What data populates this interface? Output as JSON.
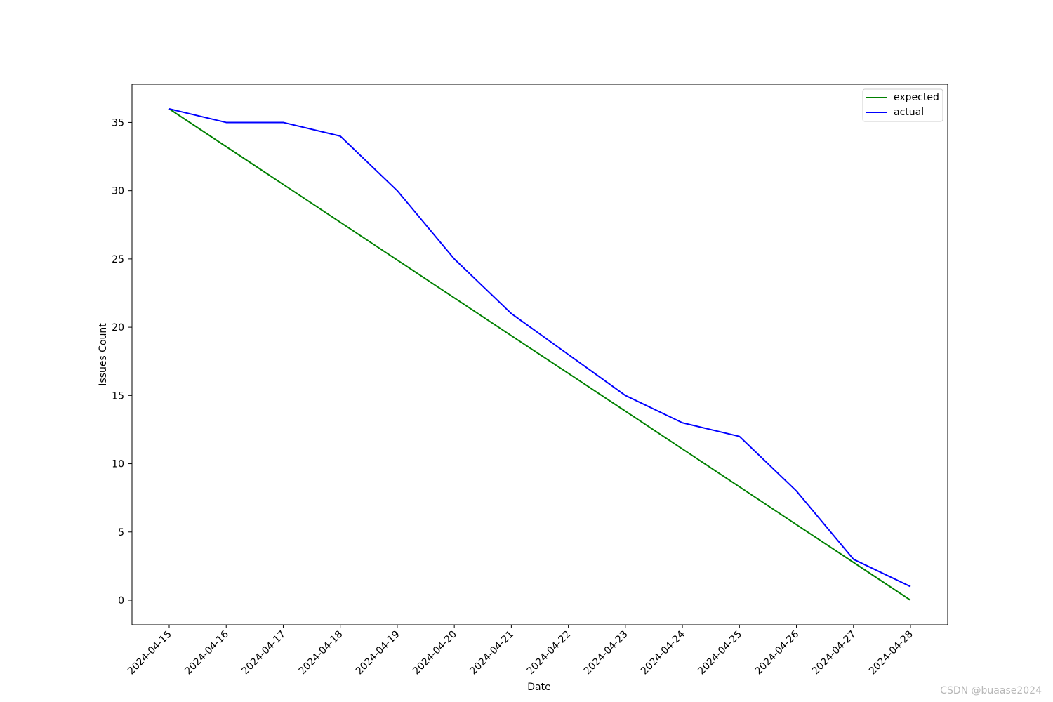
{
  "chart_data": {
    "type": "line",
    "title": "",
    "xlabel": "Date",
    "ylabel": "Issues Count",
    "x": [
      "2024-04-15",
      "2024-04-16",
      "2024-04-17",
      "2024-04-18",
      "2024-04-19",
      "2024-04-20",
      "2024-04-21",
      "2024-04-22",
      "2024-04-23",
      "2024-04-24",
      "2024-04-25",
      "2024-04-26",
      "2024-04-27",
      "2024-04-28"
    ],
    "series": [
      {
        "name": "expected",
        "color": "#008000",
        "values": [
          36,
          33.23,
          30.46,
          27.69,
          24.92,
          22.15,
          19.38,
          16.62,
          13.85,
          11.08,
          8.31,
          5.54,
          2.77,
          0
        ]
      },
      {
        "name": "actual",
        "color": "#0000ff",
        "values": [
          36,
          35,
          35,
          34,
          30,
          25,
          21,
          18,
          15,
          13,
          12,
          8,
          3,
          1
        ]
      }
    ],
    "yticks": [
      0,
      5,
      10,
      15,
      20,
      25,
      30,
      35
    ],
    "ylim": [
      -1.8,
      37.8
    ],
    "grid": false,
    "legend_position": "top-right"
  },
  "watermark": "CSDN @buaase2024"
}
